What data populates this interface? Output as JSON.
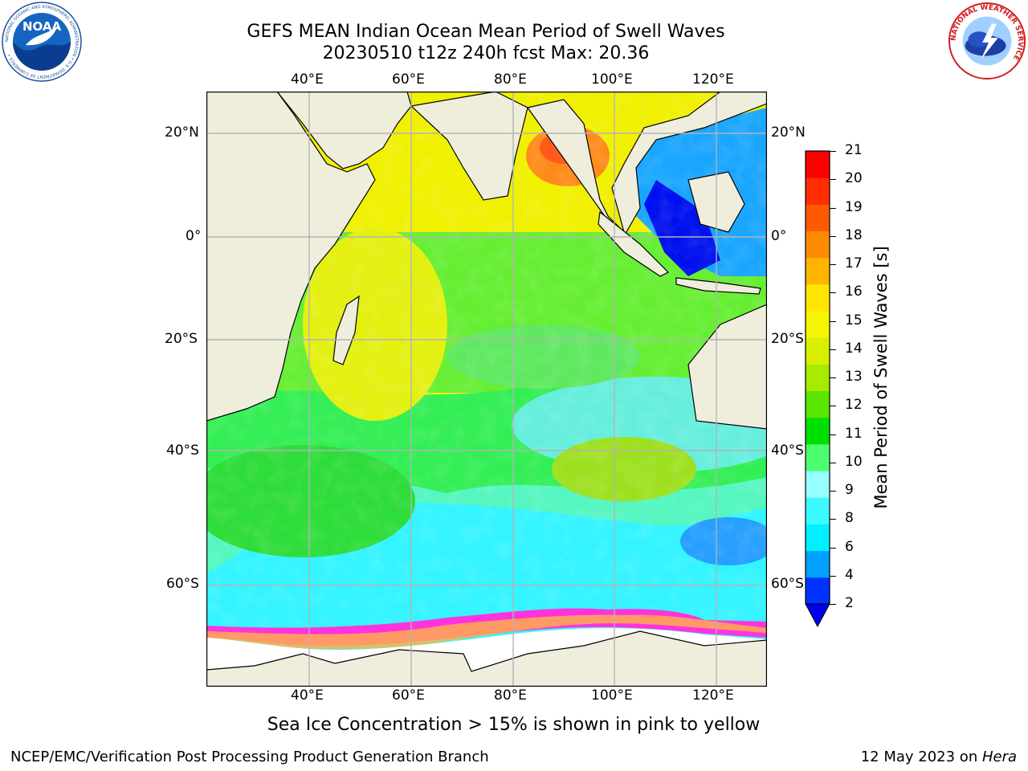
{
  "title": {
    "line1": "GEFS MEAN Indian Ocean Mean Period of Swell Waves",
    "line2": "20230510 t12z 240h fcst   Max: 20.36"
  },
  "map": {
    "lon_ticks": [
      "40°E",
      "60°E",
      "80°E",
      "100°E",
      "120°E"
    ],
    "lat_ticks": [
      "20°N",
      "0°",
      "20°S",
      "40°S",
      "60°S"
    ],
    "extent": {
      "lon_min": 20,
      "lon_max": 130,
      "lat_min": -78,
      "lat_max": 28
    }
  },
  "colorbar": {
    "label": "Mean Period of Swell Waves [s]",
    "levels": [
      "2",
      "4",
      "6",
      "8",
      "9",
      "10",
      "11",
      "12",
      "13",
      "14",
      "15",
      "16",
      "17",
      "18",
      "19",
      "20",
      "21"
    ],
    "colors": [
      "#0033ff",
      "#00a0ff",
      "#00f0ff",
      "#3cfaff",
      "#96ffff",
      "#4dff70",
      "#00e000",
      "#5ae600",
      "#a8ea00",
      "#d8f000",
      "#f6f600",
      "#ffe600",
      "#ffb400",
      "#ff8c00",
      "#ff5a00",
      "#ff2d00",
      "#ff0000"
    ],
    "under_color": "#0000ee"
  },
  "note": "Sea Ice Concentration > 15% is shown in pink to yellow",
  "footer": {
    "left": "NCEP/EMC/Verification Post Processing Product Generation Branch",
    "date": "12 May 2023 on ",
    "machine": "Hera"
  },
  "logos": {
    "noaa_text": "NOAA",
    "noaa_ring": "NATIONAL OCEANIC AND ATMOSPHERIC ADMINISTRATION • U.S. DEPARTMENT OF COMMERCE •",
    "nws_ring": "NATIONAL WEATHER SERVICE"
  }
}
